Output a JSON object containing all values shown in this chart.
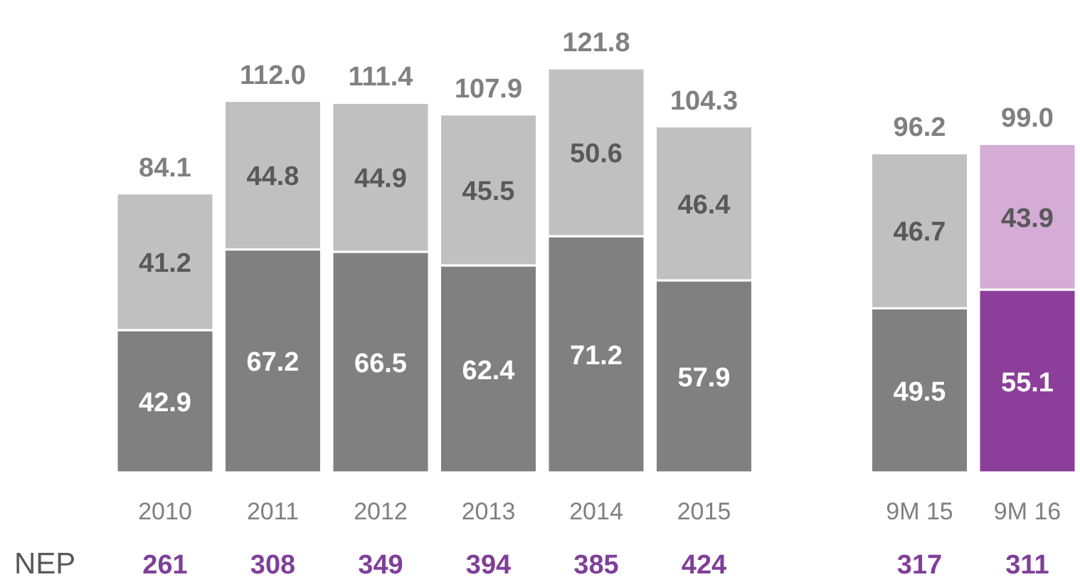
{
  "chart_data": {
    "type": "bar",
    "stacked": true,
    "data_labels": true,
    "categories": [
      "2010",
      "2011",
      "2012",
      "2013",
      "2014",
      "2015",
      null,
      "9M 15",
      "9M 16"
    ],
    "series": [
      {
        "colors": [
          "#808080",
          "#808080",
          "#808080",
          "#808080",
          "#808080",
          "#808080",
          null,
          "#808080",
          "#8b3f9a"
        ],
        "values": [
          42.9,
          67.2,
          66.5,
          62.4,
          71.2,
          57.9,
          null,
          49.5,
          55.1
        ]
      },
      {
        "colors": [
          "#c0c0c0",
          "#c0c0c0",
          "#c0c0c0",
          "#c0c0c0",
          "#c0c0c0",
          "#c0c0c0",
          null,
          "#c0c0c0",
          "#d4acd6"
        ],
        "values": [
          41.2,
          44.8,
          44.9,
          45.5,
          50.6,
          46.4,
          null,
          46.7,
          43.9
        ]
      }
    ],
    "totals": [
      "84.1",
      "112.0",
      "111.4",
      "107.9",
      "121.8",
      "104.3",
      null,
      "96.2",
      "99.0"
    ],
    "annotations": [
      "NEP",
      "261",
      "308",
      "349",
      "394",
      "385",
      "424",
      null,
      "317",
      "311"
    ]
  }
}
